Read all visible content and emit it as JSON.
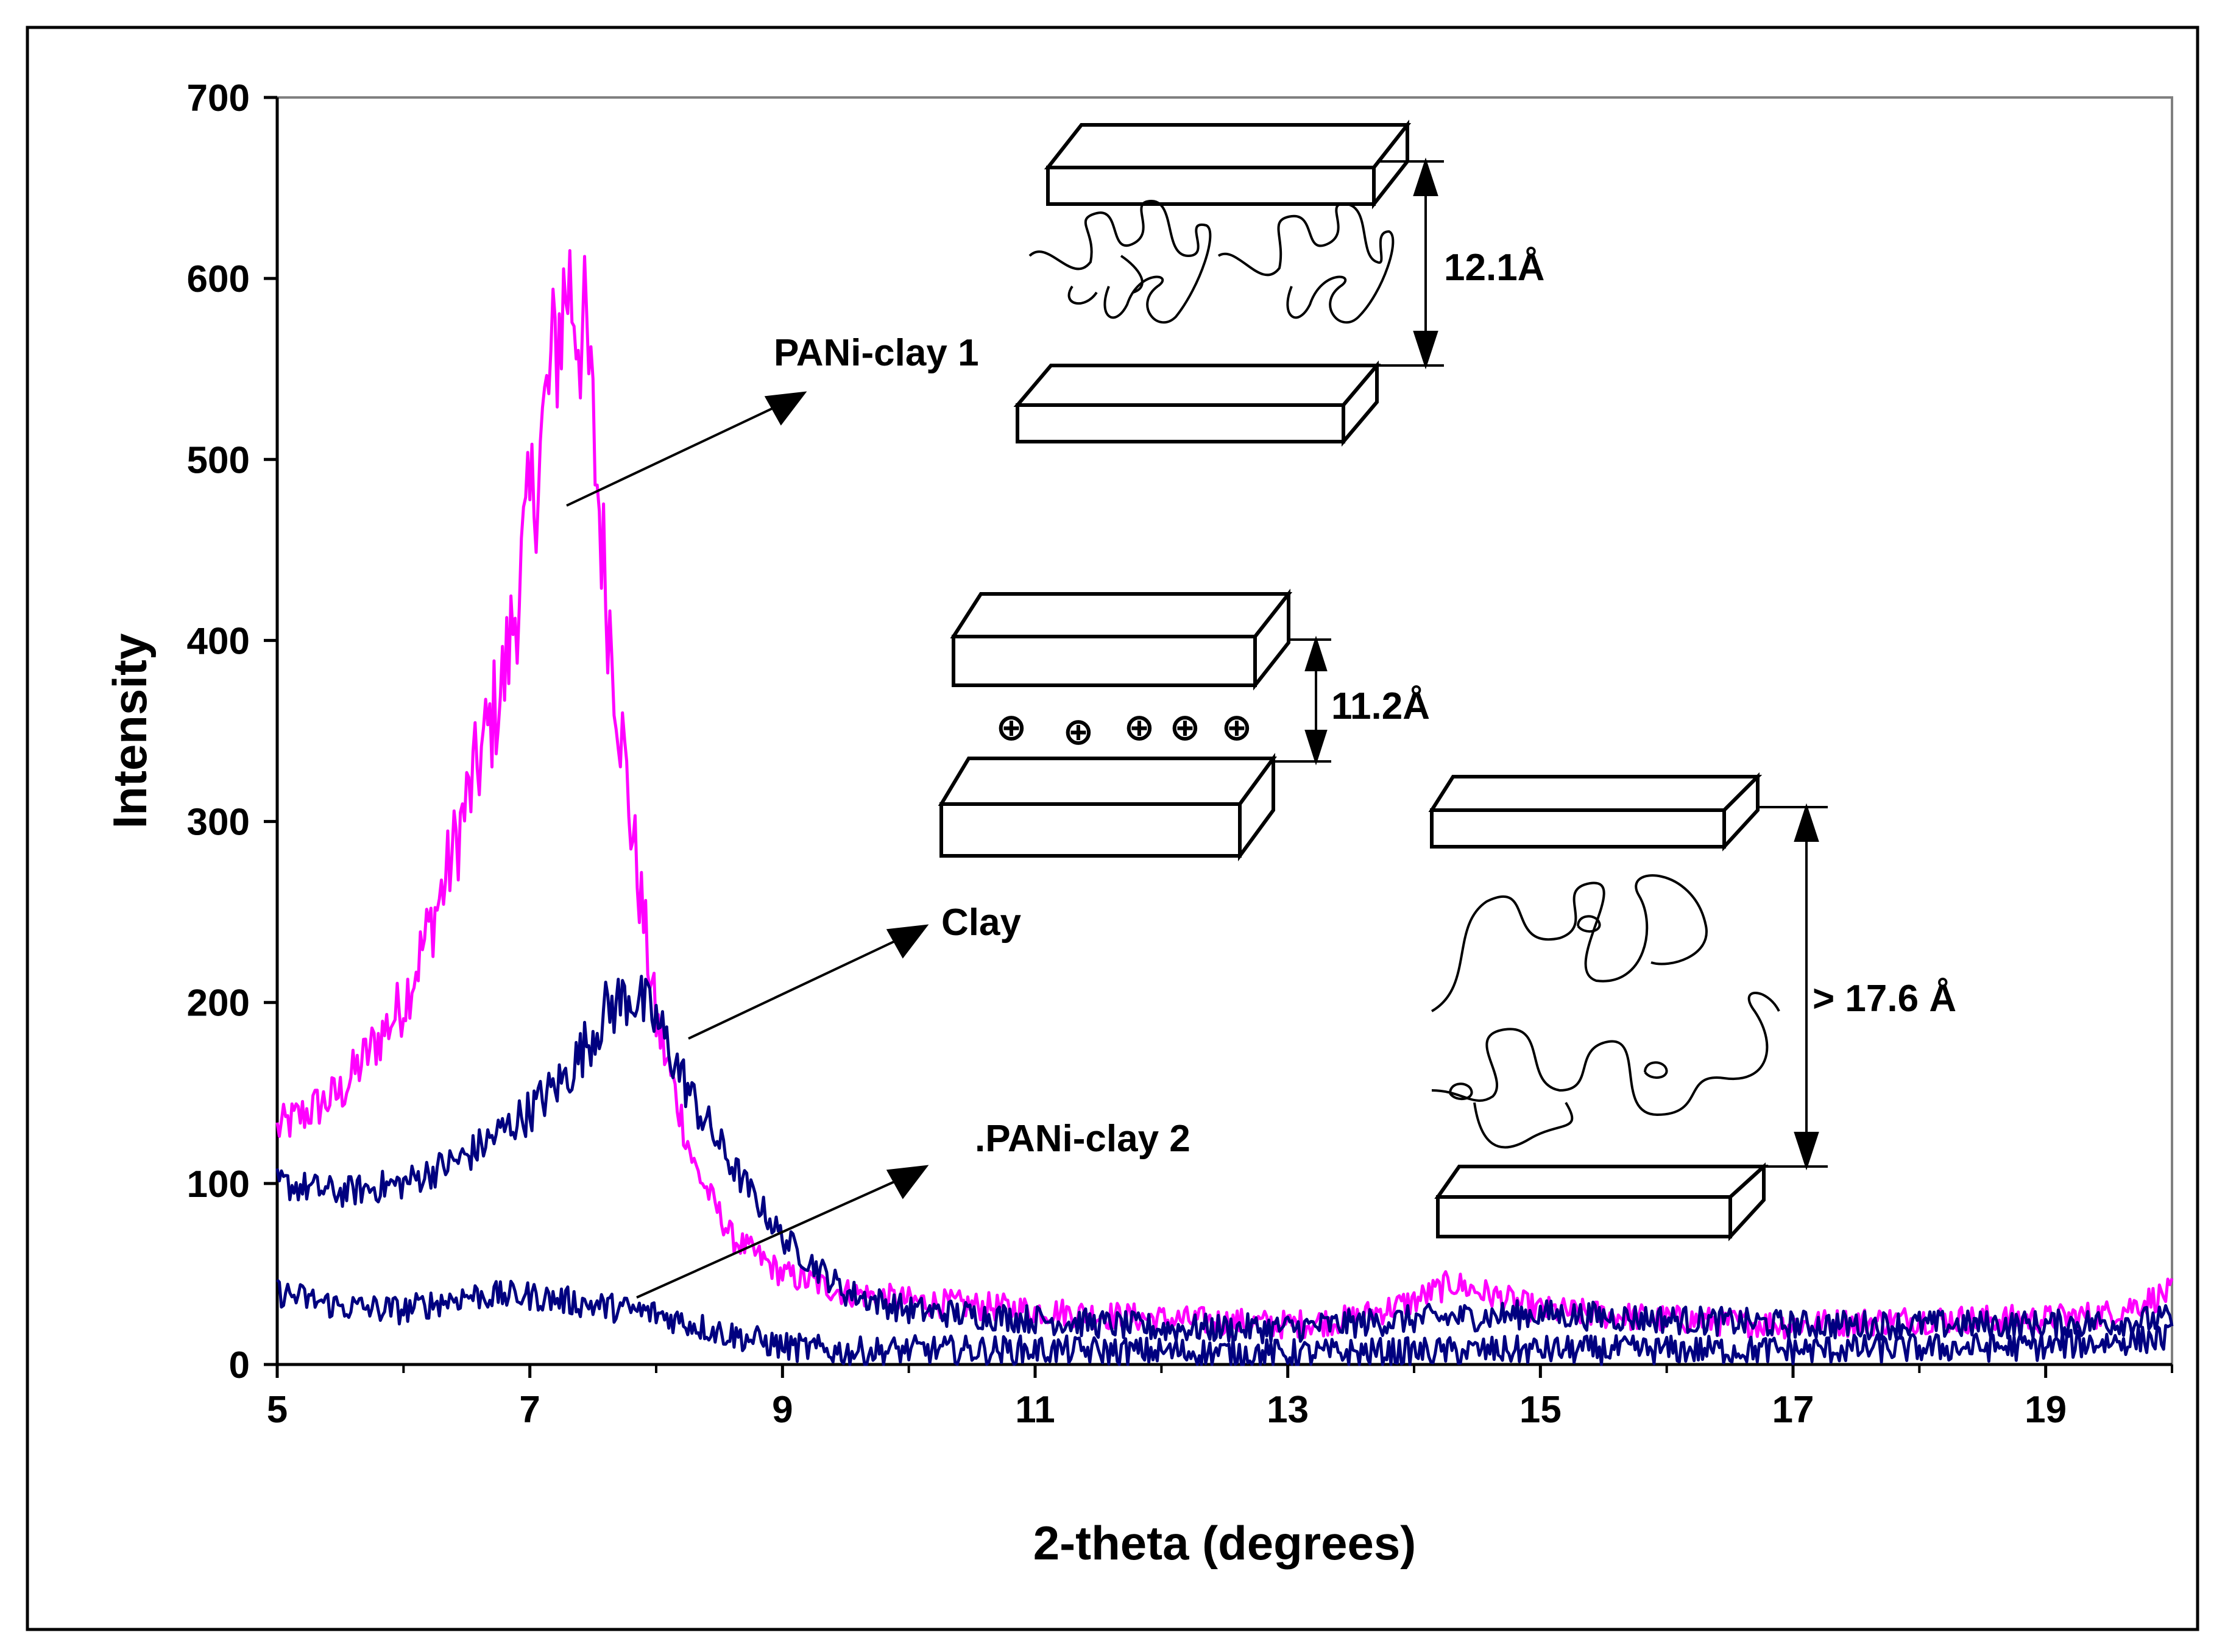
{
  "chart_data": {
    "type": "line",
    "title": "",
    "xlabel": "2-theta (degrees)",
    "ylabel": "Intensity",
    "xlim": [
      5,
      20
    ],
    "ylim": [
      0,
      700
    ],
    "x_ticks": [
      "5",
      "7",
      "9",
      "11",
      "13",
      "15",
      "17",
      "19"
    ],
    "y_ticks": [
      "0",
      "100",
      "200",
      "300",
      "400",
      "500",
      "600",
      "700"
    ],
    "grid": false,
    "legend": "none",
    "series": [
      {
        "name": "PANi-clay 1",
        "color": "#ff00ff",
        "x": [
          5,
          5.5,
          6,
          6.3,
          6.5,
          6.8,
          7.0,
          7.2,
          7.3,
          7.45,
          7.6,
          7.8,
          8.0,
          8.3,
          8.6,
          9.0,
          9.5,
          10,
          11,
          12,
          13,
          13.5,
          14,
          14.3,
          15,
          16,
          17,
          18,
          19,
          19.5,
          20
        ],
        "y": [
          130,
          150,
          200,
          260,
          310,
          380,
          470,
          560,
          600,
          560,
          430,
          300,
          190,
          110,
          70,
          50,
          40,
          35,
          30,
          25,
          22,
          25,
          35,
          45,
          30,
          25,
          22,
          25,
          25,
          28,
          40
        ]
      },
      {
        "name": "Clay",
        "color": "#000080",
        "x": [
          5,
          5.5,
          6,
          6.5,
          7,
          7.3,
          7.6,
          7.8,
          8.0,
          8.3,
          8.6,
          9.0,
          9.5,
          10,
          11,
          12,
          13,
          14,
          15,
          16,
          17,
          18,
          19,
          20
        ],
        "y": [
          100,
          95,
          100,
          115,
          140,
          160,
          195,
          205,
          190,
          145,
          110,
          70,
          40,
          30,
          25,
          20,
          20,
          25,
          28,
          25,
          22,
          22,
          22,
          25
        ]
      },
      {
        "name": "PANi-clay 2",
        "color": "#000080",
        "x": [
          5,
          5.5,
          6,
          6.5,
          7,
          7.5,
          8,
          8.5,
          9,
          9.5,
          10,
          11,
          12,
          13,
          14,
          15,
          16,
          17,
          18,
          19,
          20
        ],
        "y": [
          40,
          32,
          30,
          38,
          38,
          33,
          28,
          18,
          10,
          7,
          8,
          8,
          7,
          6,
          7,
          8,
          8,
          8,
          9,
          10,
          15
        ]
      }
    ],
    "annotations": {
      "pani_clay_1": "PANi-clay 1",
      "clay": "Clay",
      "pani_clay_2": ".PANi-clay 2",
      "spacing_pani_clay_1": "12.1Å",
      "spacing_clay": "11.2Å",
      "spacing_pani_clay_2": "> 17.6 Å",
      "cation_symbol": "⊕"
    }
  }
}
